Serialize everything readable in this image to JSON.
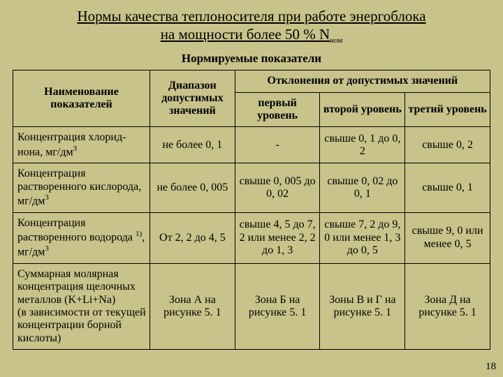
{
  "background_color": "#c8c38a",
  "title_line1": "Нормы качества теплоносителя при работе энергоблока",
  "title_line2_pre": "на мощности более 50 % N",
  "title_line2_sub": "ном",
  "subhead": "Нормируемые показатели",
  "header": {
    "param": "Наименование показателей",
    "range": "Диапазон допустимых значений",
    "dev": "Отклонения от допустимых значений",
    "lvl1": "первый уровень",
    "lvl2": "второй уровень",
    "lvl3": "третий уровень"
  },
  "rows": [
    {
      "name_html": "Концентрация хлорид-иона, мг/дм<sup>3</sup>",
      "range": "не более 0, 1",
      "l1": "-",
      "l2": "свыше 0, 1 до 0, 2",
      "l3": "свыше 0, 2"
    },
    {
      "name_html": "Концентрация растворенного кислорода, мг/дм<sup>3</sup>",
      "range": "не более 0, 005",
      "l1": "свыше 0, 005 до 0, 02",
      "l2": "свыше 0, 02 до 0, 1",
      "l3": "свыше 0, 1"
    },
    {
      "name_html": "Концентрация растворенного водорода <sup>1)</sup>, мг/дм<sup>3</sup>",
      "range": "От 2, 2 до 4, 5",
      "l1": "свыше 4, 5 до 7, 2 или менее 2, 2  до 1, 3",
      "l2": "свыше 7, 2 до 9, 0 или менее 1, 3 до 0, 5",
      "l3": "свыше 9, 0 или менее 0, 5"
    },
    {
      "name_html": "Суммарная молярная концентрация щелочных металлов (K+Li+Na)<br>(в зависимости от текущей концентрации борной кислоты)",
      "range": "Зона А на рисунке 5. 1",
      "l1": "Зона Б на рисунке 5. 1",
      "l2": "Зоны В и Г на рисунке 5. 1",
      "l3": "Зона Д на рисунке 5. 1"
    }
  ],
  "page_number": "18"
}
